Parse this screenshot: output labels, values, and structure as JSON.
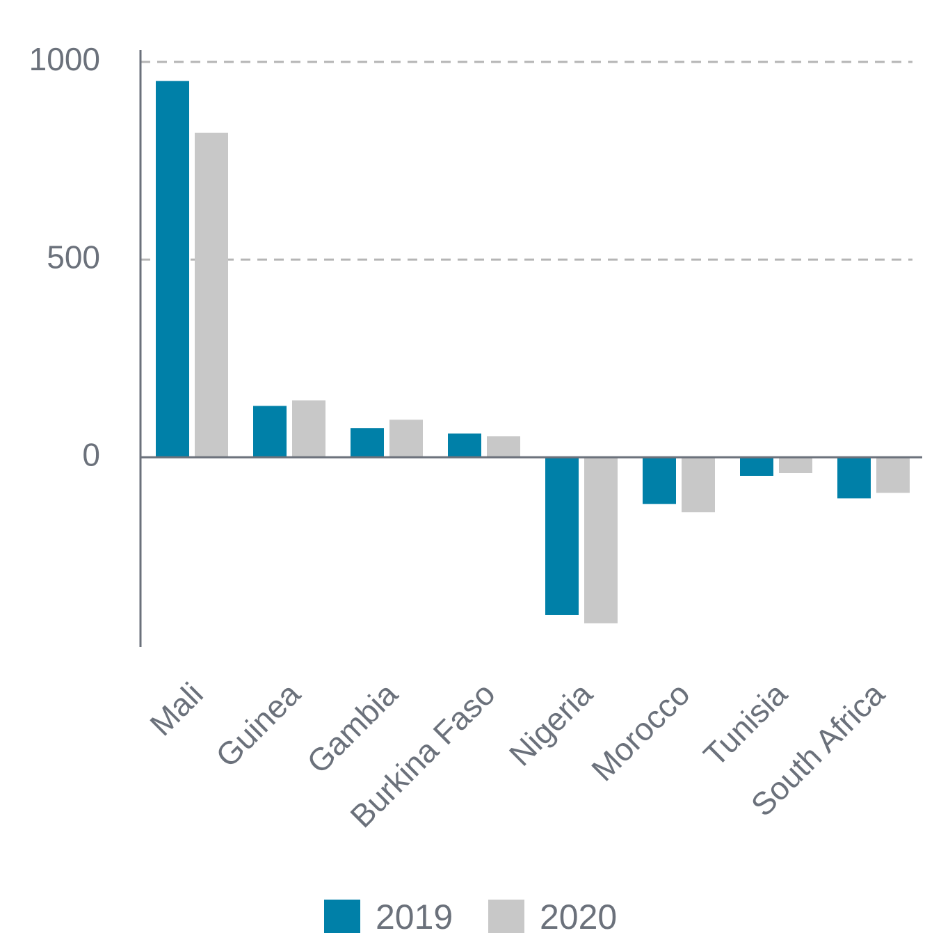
{
  "chart_data": {
    "type": "bar",
    "categories": [
      "Mali",
      "Guinea",
      "Gambia",
      "Burkina Faso",
      "Nigeria",
      "Morocco",
      "Tunisia",
      "South Africa"
    ],
    "series": [
      {
        "name": "2019",
        "color": "#0080a8",
        "values": [
          952,
          130,
          74,
          60,
          -399,
          -118,
          -47,
          -104
        ]
      },
      {
        "name": "2020",
        "color": "#c8c8c8",
        "values": [
          821,
          144,
          95,
          53,
          -420,
          -139,
          -40,
          -90
        ]
      }
    ],
    "ylim": [
      -480,
      1030
    ],
    "yticks": [
      0,
      500,
      1000
    ],
    "grid": true,
    "legend": "bottom"
  }
}
